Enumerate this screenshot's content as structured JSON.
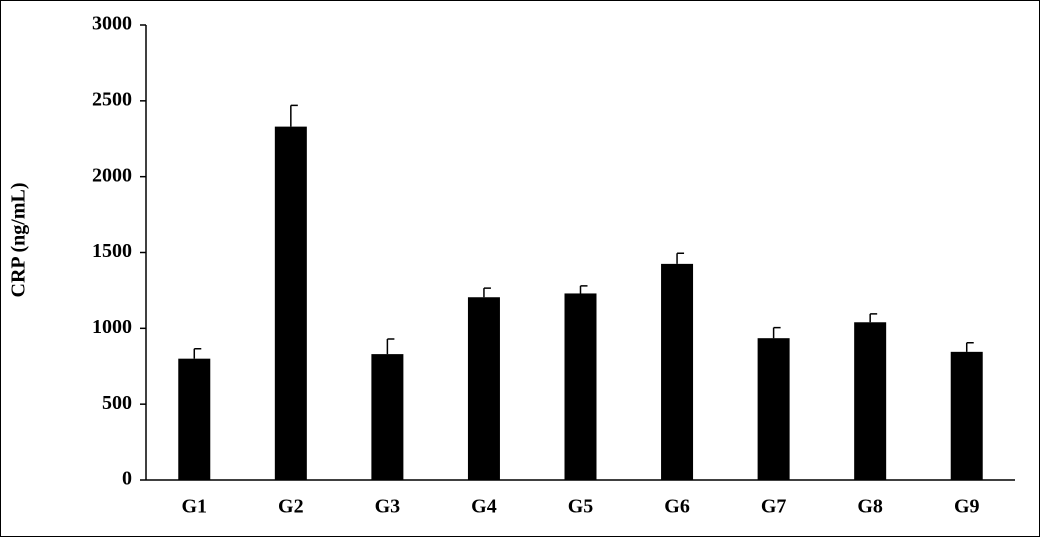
{
  "chart_data": {
    "type": "bar",
    "ylabel": "CRP (ng/mL)",
    "categories": [
      "G1",
      "G2",
      "G3",
      "G4",
      "G5",
      "G6",
      "G7",
      "G8",
      "G9"
    ],
    "values": [
      800,
      2330,
      830,
      1205,
      1230,
      1425,
      935,
      1040,
      845
    ],
    "errors": [
      65,
      140,
      100,
      60,
      50,
      70,
      70,
      55,
      60
    ],
    "color": "#000000",
    "ylim": [
      0,
      3000
    ],
    "yticks": [
      0,
      500,
      1000,
      1500,
      2000,
      2500,
      3000
    ],
    "grid": false
  }
}
